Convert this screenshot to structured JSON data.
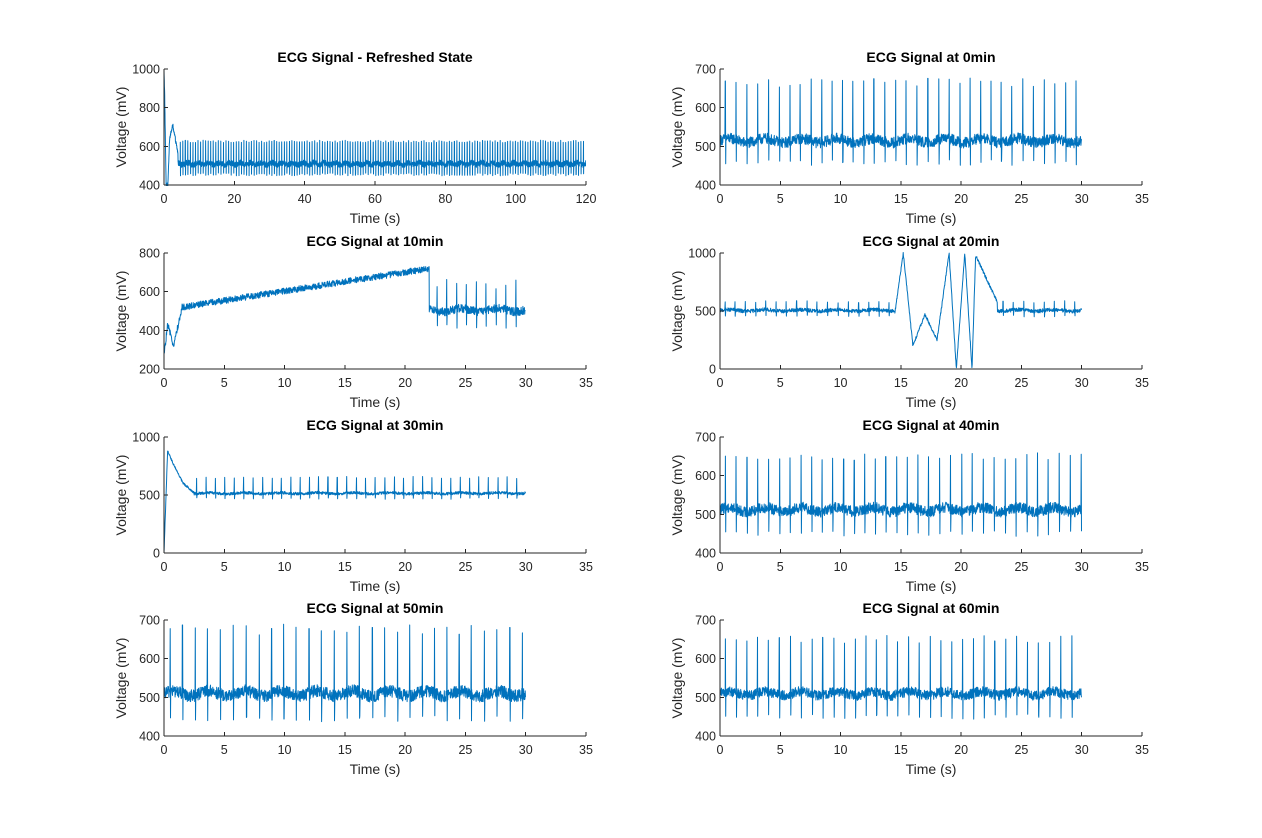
{
  "colors": {
    "trace": "#0072BD",
    "axis": "#262626",
    "background": "#ffffff"
  },
  "chart_data": [
    {
      "type": "line",
      "title": "ECG Signal - Refreshed State",
      "xlabel": "Time (s)",
      "ylabel": "Voltage (mV)",
      "xlim": [
        0,
        120
      ],
      "ylim": [
        400,
        1000
      ],
      "xticks": [
        0,
        20,
        40,
        60,
        80,
        100,
        120
      ],
      "yticks": [
        400,
        600,
        800,
        1000
      ],
      "signal": {
        "duration": 120,
        "period": 0.72,
        "baseline": 510,
        "r_peak": 625,
        "s_dip": 455,
        "noise": 14,
        "peak_jitter": 6,
        "events": [
          {
            "t": 0.0,
            "v": 1000
          },
          {
            "t": 0.2,
            "v": 860
          },
          {
            "t": 0.6,
            "v": 400
          },
          {
            "t": 1.1,
            "v": 400
          },
          {
            "t": 1.6,
            "v": 640
          },
          {
            "t": 2.5,
            "v": 710
          },
          {
            "t": 4.0,
            "v": 560
          }
        ]
      },
      "series": [
        {
          "values_note": "",
          "peak_count": 165
        }
      ]
    },
    {
      "type": "line",
      "title": "ECG Signal at 0min",
      "xlabel": "Time (s)",
      "ylabel": "Voltage (mV)",
      "xlim": [
        0,
        35
      ],
      "ylim": [
        400,
        700
      ],
      "xticks": [
        0,
        5,
        10,
        15,
        20,
        25,
        30,
        35
      ],
      "yticks": [
        400,
        500,
        600,
        700
      ],
      "signal": {
        "duration": 30,
        "period": 0.88,
        "baseline": 515,
        "r_peak": 665,
        "s_dip": 458,
        "noise": 14,
        "peak_jitter": 12,
        "events": []
      },
      "series": [
        {
          "peak_count": 34
        }
      ]
    },
    {
      "type": "line",
      "title": "ECG Signal at 10min",
      "xlabel": "Time (s)",
      "ylabel": "Voltage (mV)",
      "xlim": [
        0,
        35
      ],
      "ylim": [
        200,
        800
      ],
      "xticks": [
        0,
        5,
        10,
        15,
        20,
        25,
        30,
        35
      ],
      "yticks": [
        200,
        400,
        600,
        800
      ],
      "signal": {
        "duration": 30,
        "period": 0.82,
        "baseline": 505,
        "r_peak": 640,
        "s_dip": 420,
        "noise": 22,
        "peak_jitter": 25,
        "events": [
          {
            "t": 0.0,
            "v": 270
          },
          {
            "t": 0.3,
            "v": 430
          },
          {
            "t": 0.8,
            "v": 320
          },
          {
            "t": 1.5,
            "v": 520
          },
          {
            "t": 22.0,
            "v": 720
          }
        ]
      },
      "series": [
        {
          "peak_count": 36
        }
      ]
    },
    {
      "type": "line",
      "title": "ECG Signal at 20min",
      "xlabel": "Time (s)",
      "ylabel": "Voltage (mV)",
      "xlim": [
        0,
        35
      ],
      "ylim": [
        0,
        1000
      ],
      "xticks": [
        0,
        5,
        10,
        15,
        20,
        25,
        30,
        35
      ],
      "yticks": [
        0,
        500,
        1000
      ],
      "signal": {
        "duration": 30,
        "period": 0.85,
        "baseline": 505,
        "r_peak": 580,
        "s_dip": 455,
        "noise": 16,
        "peak_jitter": 10,
        "events": [
          {
            "t": 14.5,
            "v": 480
          },
          {
            "t": 15.2,
            "v": 1000
          },
          {
            "t": 16.0,
            "v": 200
          },
          {
            "t": 17.0,
            "v": 470
          },
          {
            "t": 18.0,
            "v": 250
          },
          {
            "t": 19.0,
            "v": 1000
          },
          {
            "t": 19.6,
            "v": 0
          },
          {
            "t": 20.3,
            "v": 1000
          },
          {
            "t": 20.9,
            "v": 0
          },
          {
            "t": 21.2,
            "v": 980
          },
          {
            "t": 22.0,
            "v": 800
          },
          {
            "t": 23.0,
            "v": 580
          }
        ]
      },
      "series": [
        {
          "peak_count": 35
        }
      ]
    },
    {
      "type": "line",
      "title": "ECG Signal at 30min",
      "xlabel": "Time (s)",
      "ylabel": "Voltage (mV)",
      "xlim": [
        0,
        35
      ],
      "ylim": [
        0,
        1000
      ],
      "xticks": [
        0,
        5,
        10,
        15,
        20,
        25,
        30,
        35
      ],
      "yticks": [
        0,
        500,
        1000
      ],
      "signal": {
        "duration": 30,
        "period": 0.78,
        "baseline": 515,
        "r_peak": 650,
        "s_dip": 470,
        "noise": 12,
        "peak_jitter": 10,
        "events": [
          {
            "t": 0.0,
            "v": 0
          },
          {
            "t": 0.3,
            "v": 880
          },
          {
            "t": 0.8,
            "v": 760
          },
          {
            "t": 1.6,
            "v": 600
          },
          {
            "t": 2.5,
            "v": 520
          }
        ]
      },
      "series": [
        {
          "peak_count": 38
        }
      ]
    },
    {
      "type": "line",
      "title": "ECG Signal at 40min",
      "xlabel": "Time (s)",
      "ylabel": "Voltage (mV)",
      "xlim": [
        0,
        35
      ],
      "ylim": [
        400,
        700
      ],
      "xticks": [
        0,
        5,
        10,
        15,
        20,
        25,
        30,
        35
      ],
      "yticks": [
        400,
        500,
        600,
        700
      ],
      "signal": {
        "duration": 30,
        "period": 0.9,
        "baseline": 512,
        "r_peak": 650,
        "s_dip": 450,
        "noise": 14,
        "peak_jitter": 10,
        "events": []
      },
      "series": [
        {
          "peak_count": 33
        }
      ]
    },
    {
      "type": "line",
      "title": "ECG Signal at 50min",
      "xlabel": "Time (s)",
      "ylabel": "Voltage (mV)",
      "xlim": [
        0,
        35
      ],
      "ylim": [
        400,
        700
      ],
      "xticks": [
        0,
        5,
        10,
        15,
        20,
        25,
        30,
        35
      ],
      "yticks": [
        400,
        500,
        600,
        700
      ],
      "signal": {
        "duration": 30,
        "period": 1.04,
        "baseline": 510,
        "r_peak": 675,
        "s_dip": 445,
        "noise": 16,
        "peak_jitter": 14,
        "events": []
      },
      "series": [
        {
          "peak_count": 29
        }
      ]
    },
    {
      "type": "line",
      "title": "ECG Signal at 60min",
      "xlabel": "Time (s)",
      "ylabel": "Voltage (mV)",
      "xlim": [
        0,
        35
      ],
      "ylim": [
        400,
        700
      ],
      "xticks": [
        0,
        5,
        10,
        15,
        20,
        25,
        30,
        35
      ],
      "yticks": [
        400,
        500,
        600,
        700
      ],
      "signal": {
        "duration": 30,
        "period": 0.9,
        "baseline": 510,
        "r_peak": 650,
        "s_dip": 450,
        "noise": 13,
        "peak_jitter": 10,
        "events": []
      },
      "series": [
        {
          "peak_count": 33
        }
      ]
    }
  ]
}
